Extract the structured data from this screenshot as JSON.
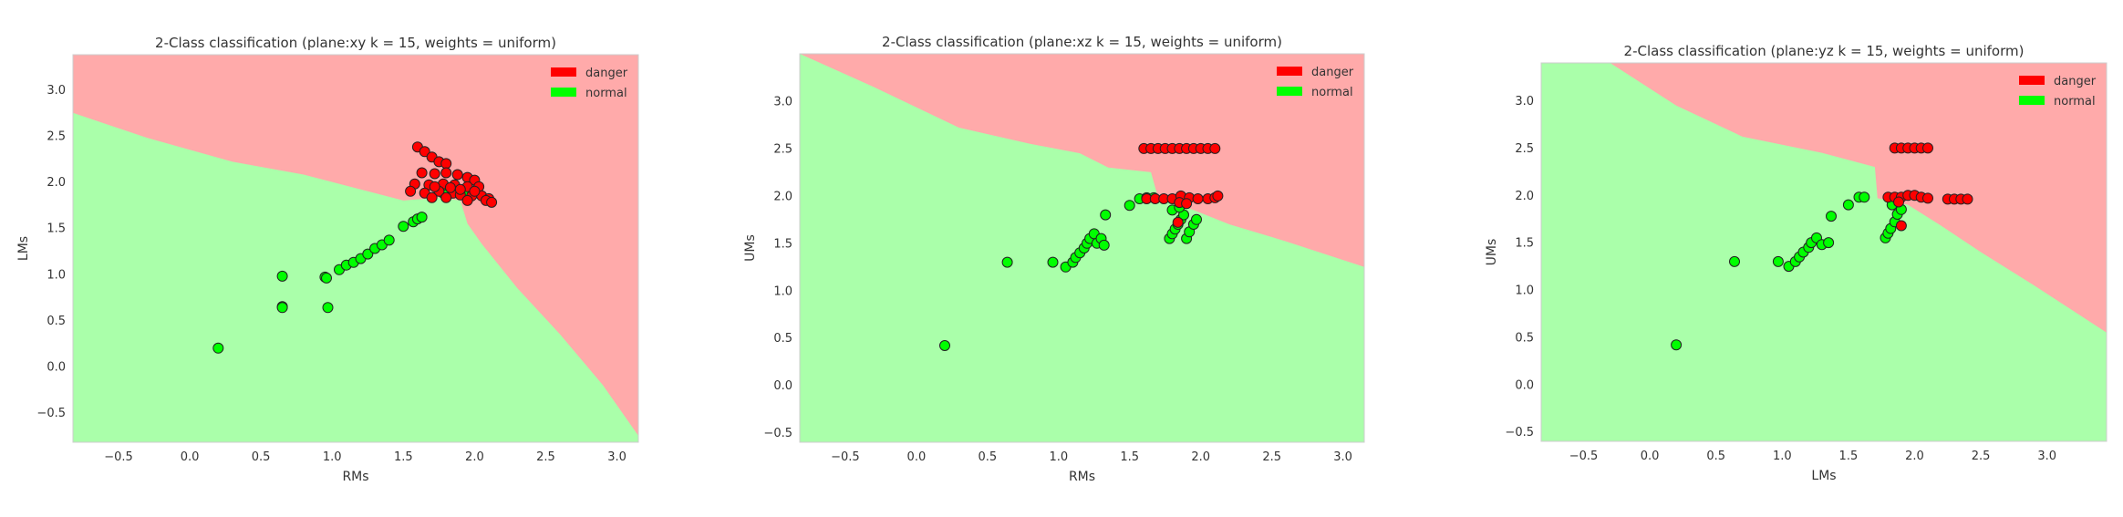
{
  "colors": {
    "region_danger": "#ffaaaa",
    "region_normal": "#aaffaa",
    "point_danger": "#ff0000",
    "point_normal": "#00ff00",
    "edge": "#222222",
    "frame": "#cccccc",
    "axis_text": "#333333"
  },
  "legend": {
    "entries": [
      {
        "label": "danger",
        "color": "#ff0000"
      },
      {
        "label": "normal",
        "color": "#00ff00"
      }
    ],
    "position": "top-right"
  },
  "chart_data": [
    {
      "type": "scatter",
      "title": "2-Class classification (plane:xy k = 15, weights = uniform)",
      "xlabel": "RMs",
      "ylabel": "LMs",
      "xlim": [
        -0.82,
        3.15
      ],
      "ylim": [
        -0.82,
        3.38
      ],
      "xticks": [
        -0.5,
        0.0,
        0.5,
        1.0,
        1.5,
        2.0,
        2.5,
        3.0
      ],
      "yticks": [
        -0.5,
        0.0,
        0.5,
        1.0,
        1.5,
        2.0,
        2.5,
        3.0
      ],
      "grid": false,
      "background": "decision regions (danger upper-right, normal lower-left)",
      "boundary": [
        [
          -0.82,
          2.75
        ],
        [
          -0.3,
          2.48
        ],
        [
          0.3,
          2.22
        ],
        [
          0.8,
          2.08
        ],
        [
          1.2,
          1.92
        ],
        [
          1.5,
          1.8
        ],
        [
          1.75,
          1.83
        ],
        [
          1.9,
          1.8
        ],
        [
          1.95,
          1.55
        ],
        [
          2.05,
          1.33
        ],
        [
          2.3,
          0.85
        ],
        [
          2.6,
          0.35
        ],
        [
          2.9,
          -0.2
        ],
        [
          3.15,
          -0.75
        ]
      ],
      "series": [
        {
          "name": "danger",
          "points": [
            [
              1.6,
              2.38
            ],
            [
              1.65,
              2.33
            ],
            [
              1.7,
              2.27
            ],
            [
              1.75,
              2.22
            ],
            [
              1.8,
              2.2
            ],
            [
              1.63,
              2.1
            ],
            [
              1.72,
              2.09
            ],
            [
              1.8,
              2.1
            ],
            [
              1.88,
              2.08
            ],
            [
              1.95,
              2.05
            ],
            [
              2.0,
              2.02
            ],
            [
              1.58,
              1.98
            ],
            [
              1.68,
              1.97
            ],
            [
              1.78,
              1.98
            ],
            [
              1.86,
              1.97
            ],
            [
              1.95,
              1.95
            ],
            [
              2.03,
              1.95
            ],
            [
              1.55,
              1.9
            ],
            [
              1.65,
              1.88
            ],
            [
              1.75,
              1.9
            ],
            [
              1.85,
              1.88
            ],
            [
              1.9,
              1.86
            ],
            [
              1.98,
              1.85
            ],
            [
              2.05,
              1.85
            ],
            [
              2.1,
              1.82
            ],
            [
              1.7,
              1.83
            ],
            [
              1.8,
              1.83
            ],
            [
              1.95,
              1.8
            ],
            [
              2.08,
              1.8
            ],
            [
              2.12,
              1.78
            ],
            [
              1.9,
              1.92
            ],
            [
              2.0,
              1.9
            ],
            [
              1.83,
              1.94
            ],
            [
              1.72,
              1.95
            ]
          ]
        },
        {
          "name": "normal",
          "points": [
            [
              0.2,
              0.2
            ],
            [
              0.65,
              0.98
            ],
            [
              0.65,
              0.65
            ],
            [
              0.65,
              0.64
            ],
            [
              0.95,
              0.97
            ],
            [
              0.96,
              0.96
            ],
            [
              0.97,
              0.64
            ],
            [
              1.05,
              1.05
            ],
            [
              1.1,
              1.1
            ],
            [
              1.15,
              1.13
            ],
            [
              1.2,
              1.17
            ],
            [
              1.25,
              1.22
            ],
            [
              1.3,
              1.28
            ],
            [
              1.35,
              1.32
            ],
            [
              1.4,
              1.37
            ],
            [
              1.5,
              1.52
            ],
            [
              1.57,
              1.57
            ],
            [
              1.6,
              1.6
            ],
            [
              1.63,
              1.62
            ],
            [
              1.78,
              1.88
            ],
            [
              1.84,
              1.88
            ],
            [
              1.9,
              1.88
            ],
            [
              1.95,
              1.87
            ],
            [
              1.8,
              1.86
            ]
          ]
        }
      ]
    },
    {
      "type": "scatter",
      "title": "2-Class classification (plane:xz k = 15, weights = uniform)",
      "xlabel": "RMs",
      "ylabel": "UMs",
      "xlim": [
        -0.82,
        3.15
      ],
      "ylim": [
        -0.6,
        3.5
      ],
      "xticks": [
        -0.5,
        0.0,
        0.5,
        1.0,
        1.5,
        2.0,
        2.5,
        3.0
      ],
      "yticks": [
        -0.5,
        0.0,
        0.5,
        1.0,
        1.5,
        2.0,
        2.5,
        3.0
      ],
      "grid": false,
      "background": "decision regions (danger upper-right, normal lower-left)",
      "boundary": [
        [
          -0.82,
          3.5
        ],
        [
          -0.3,
          3.15
        ],
        [
          0.3,
          2.72
        ],
        [
          0.8,
          2.55
        ],
        [
          1.15,
          2.45
        ],
        [
          1.35,
          2.3
        ],
        [
          1.65,
          2.25
        ],
        [
          1.7,
          1.98
        ],
        [
          1.95,
          1.85
        ],
        [
          2.2,
          1.7
        ],
        [
          2.6,
          1.52
        ],
        [
          3.15,
          1.25
        ]
      ],
      "series": [
        {
          "name": "danger",
          "points": [
            [
              1.6,
              2.5
            ],
            [
              1.65,
              2.5
            ],
            [
              1.7,
              2.5
            ],
            [
              1.75,
              2.5
            ],
            [
              1.8,
              2.5
            ],
            [
              1.85,
              2.5
            ],
            [
              1.9,
              2.5
            ],
            [
              1.95,
              2.5
            ],
            [
              2.0,
              2.5
            ],
            [
              2.05,
              2.5
            ],
            [
              2.1,
              2.5
            ],
            [
              1.62,
              1.97
            ],
            [
              1.68,
              1.97
            ],
            [
              1.74,
              1.97
            ],
            [
              1.8,
              1.97
            ],
            [
              1.86,
              2.0
            ],
            [
              1.92,
              1.98
            ],
            [
              1.98,
              1.97
            ],
            [
              2.05,
              1.97
            ],
            [
              2.1,
              1.98
            ],
            [
              2.12,
              2.0
            ],
            [
              1.85,
              1.93
            ],
            [
              1.9,
              1.92
            ],
            [
              1.84,
              1.72
            ]
          ]
        },
        {
          "name": "normal",
          "points": [
            [
              0.2,
              0.42
            ],
            [
              0.64,
              1.3
            ],
            [
              0.96,
              1.3
            ],
            [
              1.05,
              1.25
            ],
            [
              1.1,
              1.3
            ],
            [
              1.12,
              1.35
            ],
            [
              1.15,
              1.4
            ],
            [
              1.18,
              1.45
            ],
            [
              1.2,
              1.5
            ],
            [
              1.22,
              1.55
            ],
            [
              1.25,
              1.6
            ],
            [
              1.27,
              1.5
            ],
            [
              1.3,
              1.55
            ],
            [
              1.32,
              1.48
            ],
            [
              1.33,
              1.8
            ],
            [
              1.5,
              1.9
            ],
            [
              1.57,
              1.97
            ],
            [
              1.62,
              1.98
            ],
            [
              1.67,
              1.98
            ],
            [
              1.78,
              1.55
            ],
            [
              1.8,
              1.6
            ],
            [
              1.82,
              1.65
            ],
            [
              1.84,
              1.7
            ],
            [
              1.86,
              1.75
            ],
            [
              1.88,
              1.8
            ],
            [
              1.9,
              1.55
            ],
            [
              1.92,
              1.62
            ],
            [
              1.95,
              1.7
            ],
            [
              1.97,
              1.75
            ],
            [
              1.8,
              1.85
            ],
            [
              1.85,
              1.88
            ]
          ]
        }
      ]
    },
    {
      "type": "scatter",
      "title": "2-Class classification (plane:yz k = 15, weights = uniform)",
      "xlabel": "LMs",
      "ylabel": "UMs",
      "xlim": [
        -0.82,
        3.45
      ],
      "ylim": [
        -0.6,
        3.4
      ],
      "xticks": [
        -0.5,
        0.0,
        0.5,
        1.0,
        1.5,
        2.0,
        2.5,
        3.0
      ],
      "yticks": [
        -0.5,
        0.0,
        0.5,
        1.0,
        1.5,
        2.0,
        2.5,
        3.0
      ],
      "grid": false,
      "background": "decision regions (danger upper-right, normal lower-left)",
      "boundary": [
        [
          -0.3,
          3.4
        ],
        [
          0.2,
          2.95
        ],
        [
          0.7,
          2.62
        ],
        [
          1.3,
          2.45
        ],
        [
          1.7,
          2.3
        ],
        [
          1.72,
          1.97
        ],
        [
          1.95,
          1.9
        ],
        [
          2.2,
          1.68
        ],
        [
          2.5,
          1.4
        ],
        [
          2.9,
          1.05
        ],
        [
          3.45,
          0.55
        ]
      ],
      "series": [
        {
          "name": "danger",
          "points": [
            [
              1.85,
              2.5
            ],
            [
              1.9,
              2.5
            ],
            [
              1.95,
              2.5
            ],
            [
              2.0,
              2.5
            ],
            [
              2.05,
              2.5
            ],
            [
              2.1,
              2.5
            ],
            [
              1.8,
              1.98
            ],
            [
              1.85,
              1.98
            ],
            [
              1.9,
              1.98
            ],
            [
              1.95,
              2.0
            ],
            [
              2.0,
              2.0
            ],
            [
              2.05,
              1.98
            ],
            [
              2.1,
              1.97
            ],
            [
              2.25,
              1.96
            ],
            [
              2.3,
              1.96
            ],
            [
              2.35,
              1.96
            ],
            [
              2.4,
              1.96
            ],
            [
              1.88,
              1.93
            ],
            [
              1.9,
              1.68
            ]
          ]
        },
        {
          "name": "normal",
          "points": [
            [
              0.2,
              0.42
            ],
            [
              0.64,
              1.3
            ],
            [
              0.97,
              1.3
            ],
            [
              1.05,
              1.25
            ],
            [
              1.1,
              1.3
            ],
            [
              1.13,
              1.35
            ],
            [
              1.16,
              1.4
            ],
            [
              1.2,
              1.45
            ],
            [
              1.22,
              1.5
            ],
            [
              1.26,
              1.55
            ],
            [
              1.3,
              1.48
            ],
            [
              1.35,
              1.5
            ],
            [
              1.37,
              1.78
            ],
            [
              1.5,
              1.9
            ],
            [
              1.58,
              1.98
            ],
            [
              1.62,
              1.98
            ],
            [
              1.78,
              1.55
            ],
            [
              1.8,
              1.6
            ],
            [
              1.82,
              1.65
            ],
            [
              1.85,
              1.72
            ],
            [
              1.87,
              1.8
            ],
            [
              1.9,
              1.85
            ],
            [
              1.83,
              1.9
            ]
          ]
        }
      ]
    }
  ]
}
